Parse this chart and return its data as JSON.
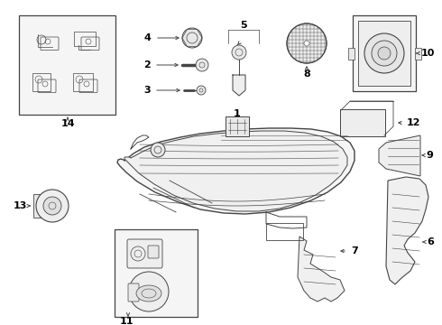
{
  "bg_color": "#ffffff",
  "line_color": "#444444",
  "text_color": "#000000",
  "fig_w": 4.9,
  "fig_h": 3.6,
  "dpi": 100
}
